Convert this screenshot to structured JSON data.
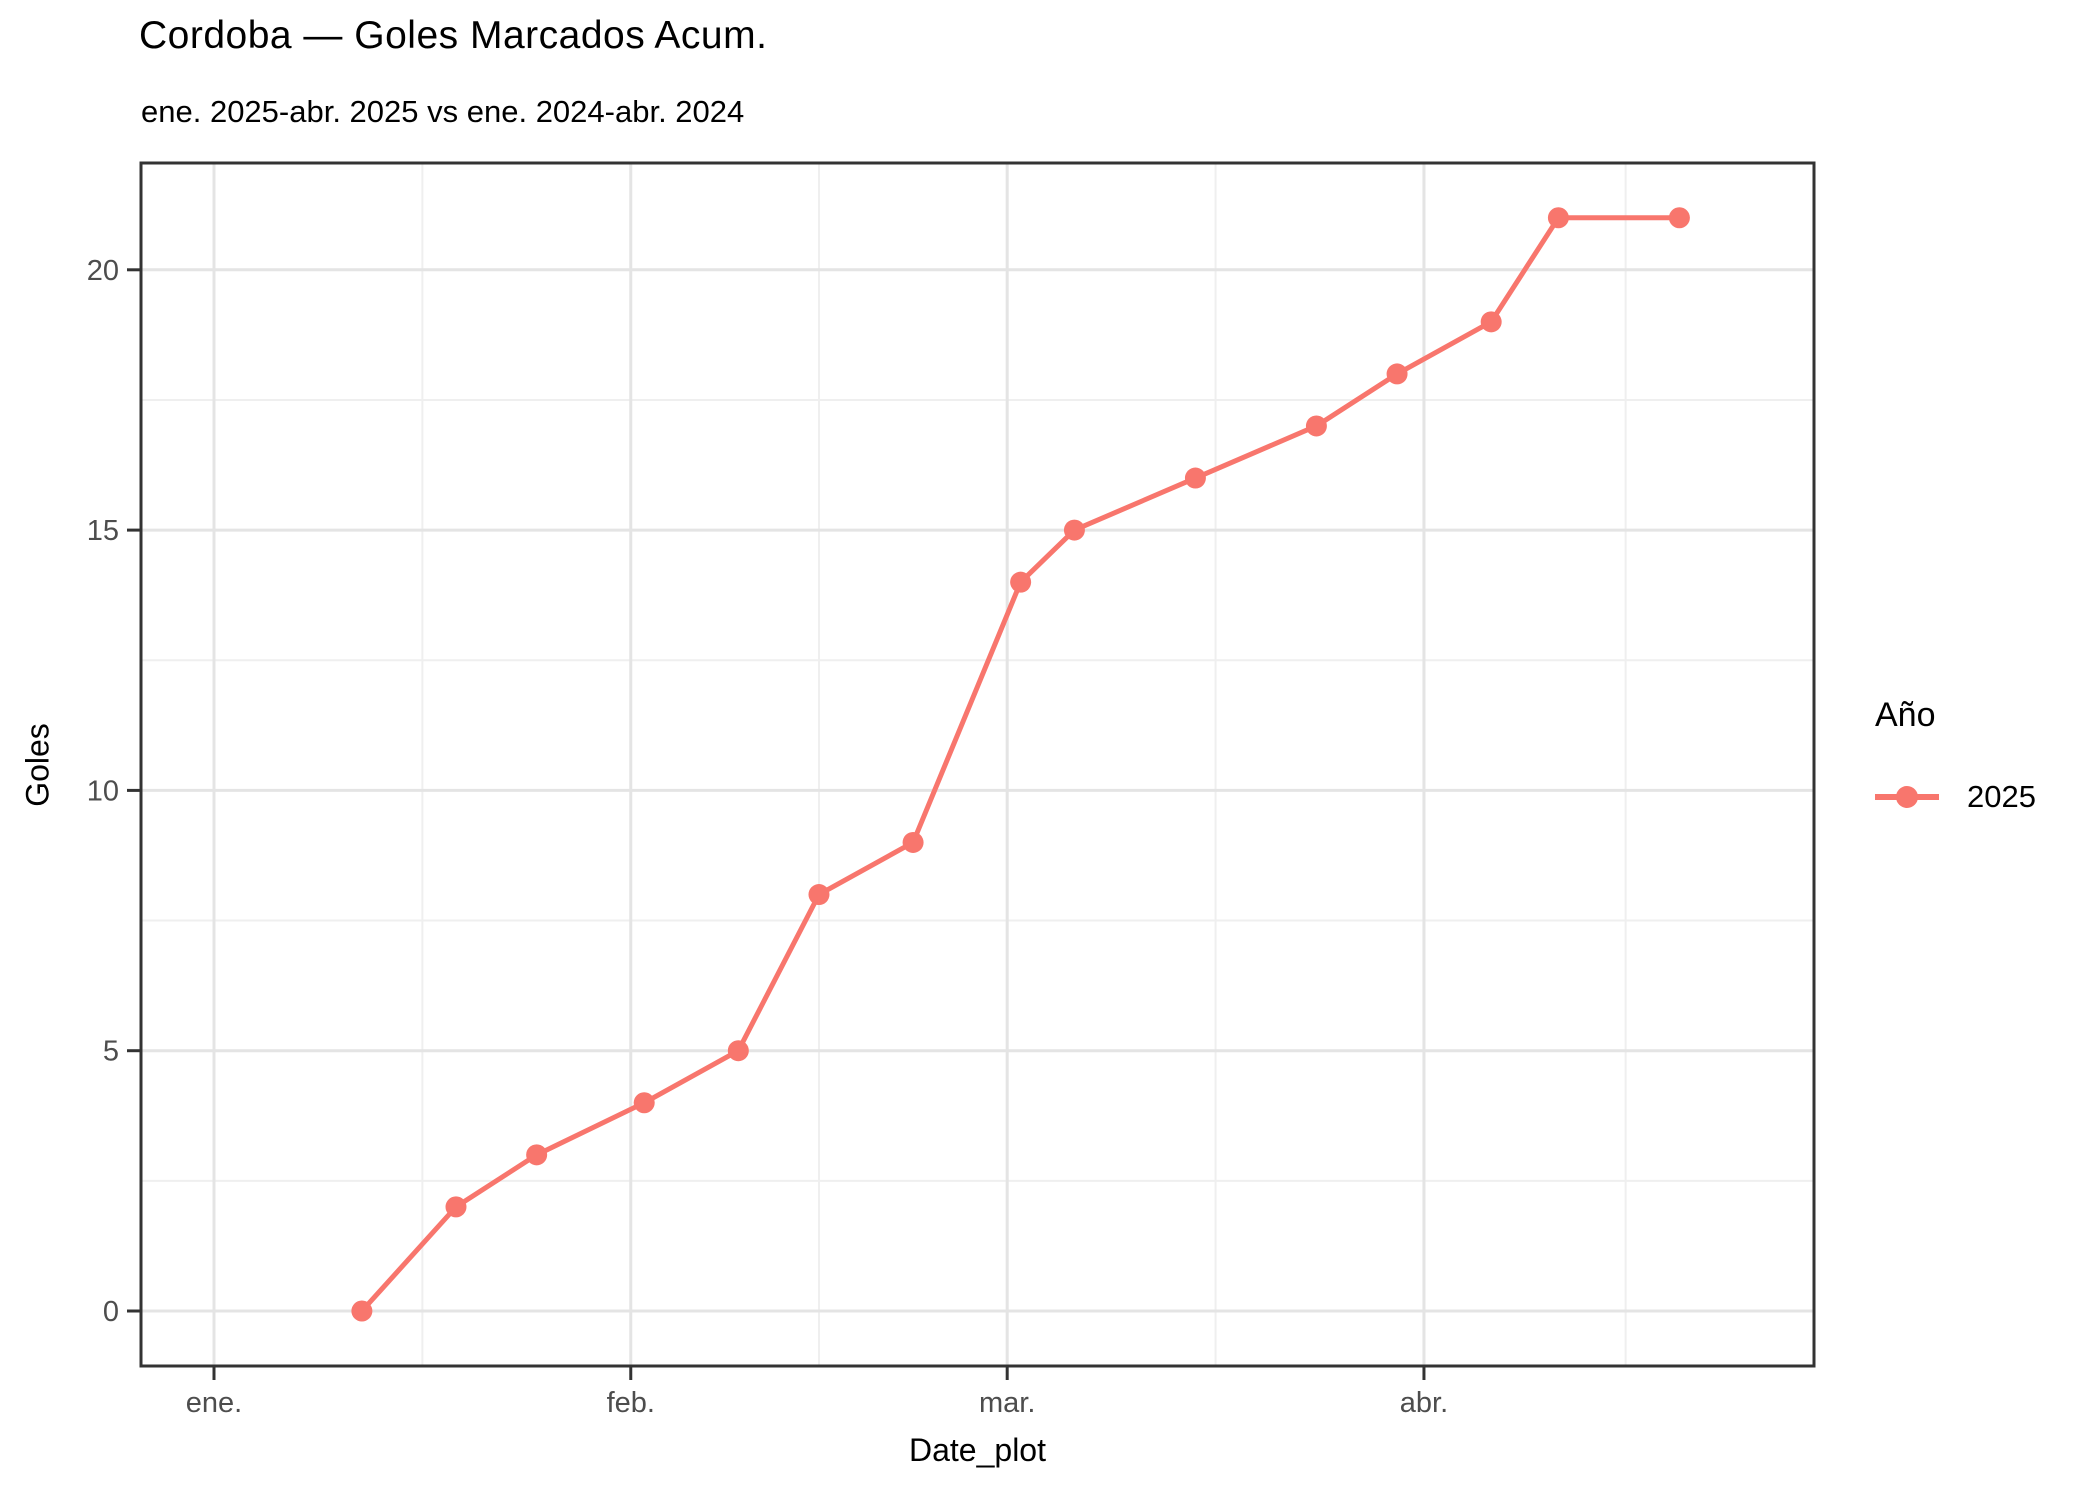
{
  "title": "Cordoba — Goles Marcados Acum.",
  "subtitle": "ene. 2025-abr. 2025 vs ene. 2024-abr. 2024",
  "legend": {
    "title": "Año",
    "entries": [
      {
        "label": "2025",
        "color": "#F8766D"
      }
    ]
  },
  "chart_data": {
    "type": "line",
    "title": "Cordoba — Goles Marcados Acum.",
    "subtitle": "ene. 2025-abr. 2025 vs ene. 2024-abr. 2024",
    "xlabel": "Date_plot",
    "ylabel": "Goles",
    "legend_position": "right",
    "grid": true,
    "ylim": [
      -1,
      22
    ],
    "y_ticks": [
      0,
      5,
      10,
      15,
      20
    ],
    "x_ticks": [
      {
        "label": "ene.",
        "date": "2025-01-01"
      },
      {
        "label": "feb.",
        "date": "2025-02-01"
      },
      {
        "label": "mar.",
        "date": "2025-03-01"
      },
      {
        "label": "abr.",
        "date": "2025-04-01"
      }
    ],
    "x_month_boundaries": [
      "2025-01-01",
      "2025-02-01",
      "2025-03-01",
      "2025-04-01",
      "2025-05-01"
    ],
    "series": [
      {
        "name": "2025",
        "color": "#F8766D",
        "points": [
          {
            "date": "2025-01-12",
            "value": 0
          },
          {
            "date": "2025-01-19",
            "value": 2
          },
          {
            "date": "2025-01-25",
            "value": 3
          },
          {
            "date": "2025-02-02",
            "value": 4
          },
          {
            "date": "2025-02-09",
            "value": 5
          },
          {
            "date": "2025-02-15",
            "value": 8
          },
          {
            "date": "2025-02-22",
            "value": 9
          },
          {
            "date": "2025-03-02",
            "value": 14
          },
          {
            "date": "2025-03-06",
            "value": 15
          },
          {
            "date": "2025-03-15",
            "value": 16
          },
          {
            "date": "2025-03-24",
            "value": 17
          },
          {
            "date": "2025-03-30",
            "value": 18
          },
          {
            "date": "2025-04-06",
            "value": 19
          },
          {
            "date": "2025-04-11",
            "value": 21
          },
          {
            "date": "2025-04-20",
            "value": 21
          }
        ]
      }
    ]
  },
  "colors": {
    "series": "#F8766D",
    "grid_major": "#E4E4E4",
    "grid_minor": "#EFEFEF",
    "panel_border": "#333333",
    "tick_label": "#4D4D4D",
    "background": "#FFFFFF"
  }
}
